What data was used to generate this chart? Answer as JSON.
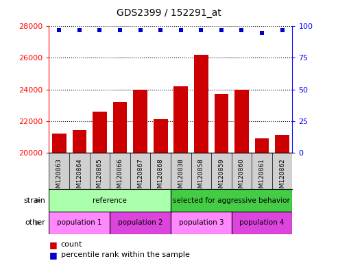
{
  "title": "GDS2399 / 152291_at",
  "samples": [
    "GSM120863",
    "GSM120864",
    "GSM120865",
    "GSM120866",
    "GSM120867",
    "GSM120868",
    "GSM120838",
    "GSM120858",
    "GSM120859",
    "GSM120860",
    "GSM120861",
    "GSM120862"
  ],
  "counts": [
    21200,
    21400,
    22600,
    23200,
    24000,
    22100,
    24200,
    26200,
    23700,
    24000,
    20900,
    21100
  ],
  "percentile_ranks": [
    97,
    97,
    97,
    97,
    97,
    97,
    97,
    97,
    97,
    97,
    95,
    97
  ],
  "ylim_left": [
    20000,
    28000
  ],
  "ylim_right": [
    0,
    100
  ],
  "yticks_left": [
    20000,
    22000,
    24000,
    26000,
    28000
  ],
  "yticks_right": [
    0,
    25,
    50,
    75,
    100
  ],
  "bar_color": "#cc0000",
  "dot_color": "#0000cc",
  "strain_groups": [
    {
      "label": "reference",
      "start": 0,
      "end": 6,
      "color": "#aaffaa"
    },
    {
      "label": "selected for aggressive behavior",
      "start": 6,
      "end": 12,
      "color": "#44cc44"
    }
  ],
  "other_groups": [
    {
      "label": "population 1",
      "start": 0,
      "end": 3,
      "color": "#ff88ff"
    },
    {
      "label": "population 2",
      "start": 3,
      "end": 6,
      "color": "#dd44dd"
    },
    {
      "label": "population 3",
      "start": 6,
      "end": 9,
      "color": "#ff88ff"
    },
    {
      "label": "population 4",
      "start": 9,
      "end": 12,
      "color": "#dd44dd"
    }
  ],
  "strain_label": "strain",
  "other_label": "other",
  "legend_count_label": "count",
  "legend_pct_label": "percentile rank within the sample",
  "xtick_bg_color": "#d0d0d0"
}
